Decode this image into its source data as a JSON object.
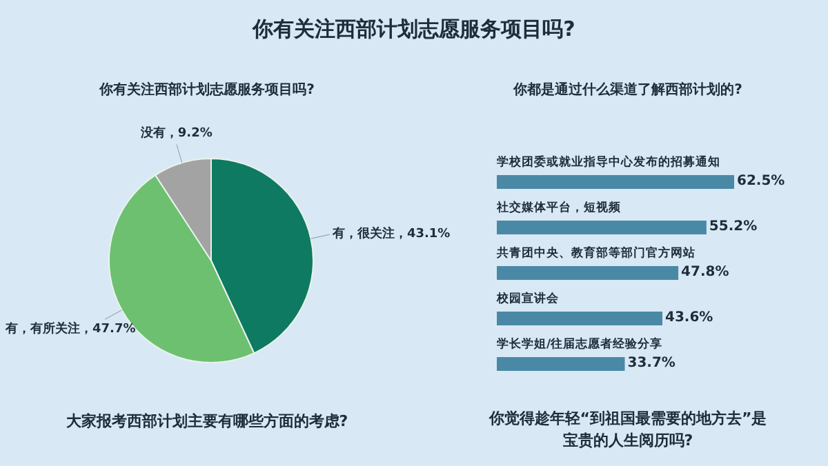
{
  "chart_data": [
    {
      "type": "pie",
      "title": "你有关注西部计划志愿服务项目吗?",
      "subtitle": "你有关注西部计划志愿服务项目吗?",
      "categories": [
        "有，很关注",
        "有，有所关注",
        "没有"
      ],
      "values": [
        43.1,
        47.7,
        9.2
      ],
      "value_labels": [
        "43.1%",
        "47.7%",
        "9.2%"
      ],
      "colors": [
        "#0e7a62",
        "#6cc070",
        "#a3a3a3"
      ],
      "annotations": [
        "大家报考西部计划主要有哪些方面的考虑?"
      ]
    },
    {
      "type": "bar",
      "orientation": "horizontal",
      "title": "你都是通过什么渠道了解西部计划的?",
      "categories": [
        "学校团委或就业指导中心发布的招募通知",
        "社交媒体平台，短视频",
        "共青团中央、教育部等部门官方网站",
        "校园宣讲会",
        "学长学姐/往届志愿者经验分享"
      ],
      "values": [
        62.5,
        55.2,
        47.8,
        43.6,
        33.7
      ],
      "value_labels": [
        "62.5%",
        "55.2%",
        "47.8%",
        "43.6%",
        "33.7%"
      ],
      "color": "#4a89a6",
      "annotations": [
        "你觉得趁年轻“到祖国最需要的地方去”是宝贵的人生阅历吗?"
      ]
    }
  ]
}
